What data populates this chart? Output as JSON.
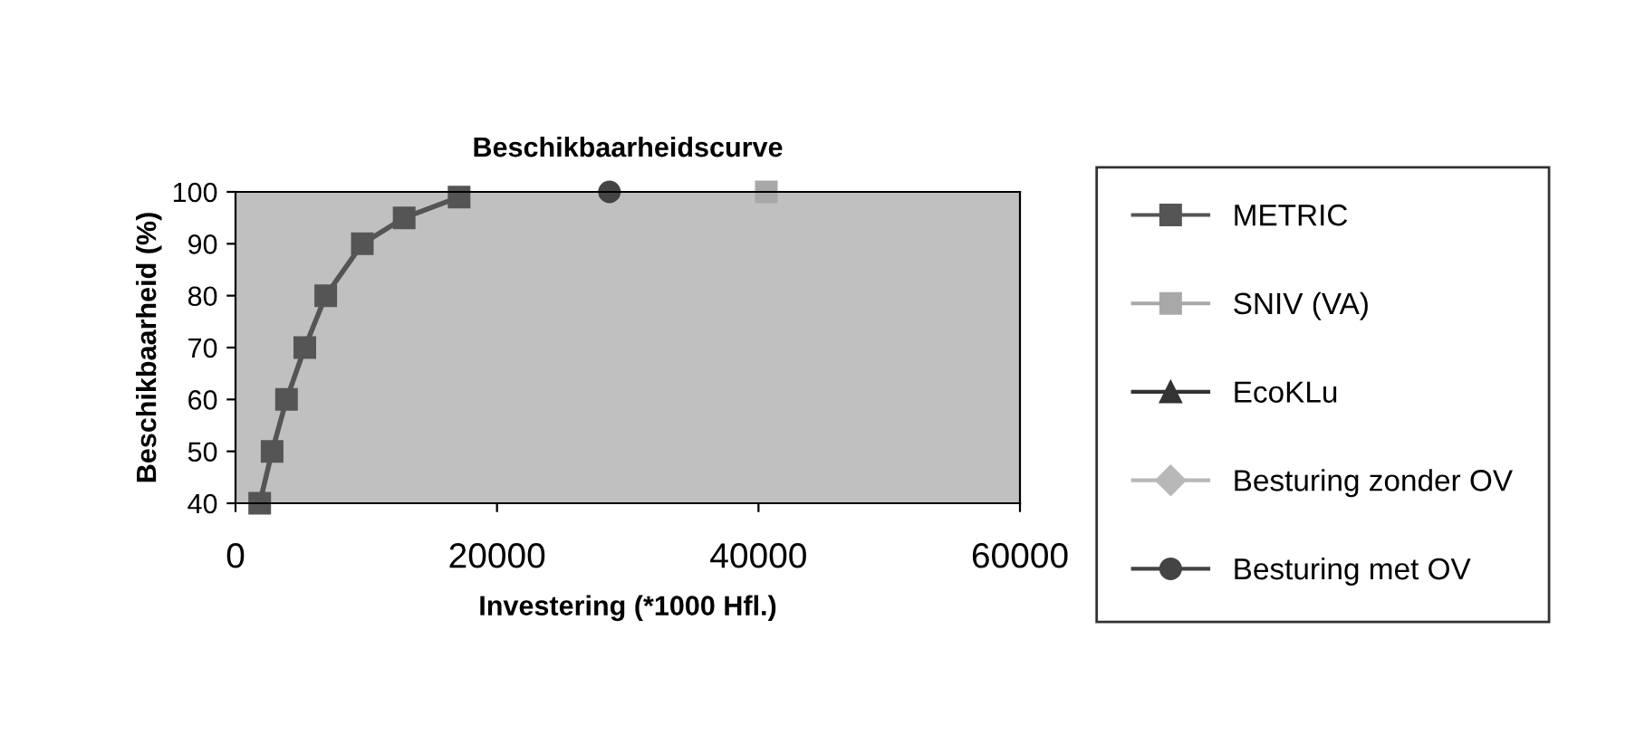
{
  "chart_data": {
    "type": "line",
    "title": "Beschikbaarheidscurve",
    "xlabel": "Investering (*1000 Hfl.)",
    "ylabel": "Beschikbaarheid (%)",
    "xlim": [
      0,
      60000
    ],
    "xticks": [
      0,
      20000,
      40000,
      60000
    ],
    "ylim": [
      40,
      100
    ],
    "yticks": [
      40,
      50,
      60,
      70,
      80,
      90,
      100
    ],
    "grid": false,
    "legend": "right",
    "series": [
      {
        "name": "METRIC",
        "color": "#555555",
        "marker": "square",
        "x": [
          1850,
          2800,
          3900,
          5300,
          6900,
          9700,
          12900,
          17100
        ],
        "values": [
          40,
          50,
          60,
          70,
          80,
          90,
          95,
          99
        ]
      },
      {
        "name": "SNIV (VA)",
        "color": "#a8a8a8",
        "marker": "square",
        "x": [
          40600
        ],
        "values": [
          100
        ]
      },
      {
        "name": "EcoKLu",
        "color": "#333333",
        "marker": "triangle"
      },
      {
        "name": "Besturing zonder OV",
        "color": "#b8b8b8",
        "marker": "diamond"
      },
      {
        "name": "Besturing met OV",
        "color": "#444444",
        "marker": "circle",
        "x": [
          28600
        ],
        "values": [
          100
        ]
      }
    ]
  }
}
